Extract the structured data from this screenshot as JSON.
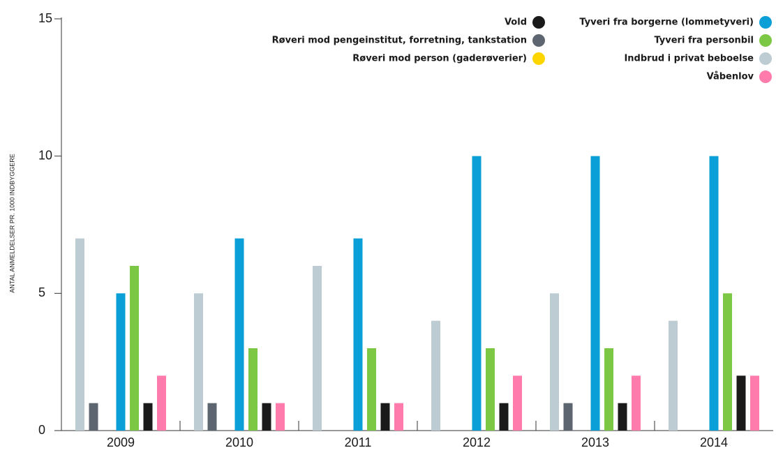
{
  "chart_data": {
    "type": "bar",
    "y_label": "ANTAL ANMELDELSER PR. 1000 INDBYGGERE",
    "categories": [
      "2009",
      "2010",
      "2011",
      "2012",
      "2013",
      "2014"
    ],
    "series": [
      {
        "name": "Indbrud i privat beboelse",
        "color": "#bdccd2",
        "values": [
          7,
          5,
          6,
          4,
          5,
          4
        ]
      },
      {
        "name": "Røveri mod pengeinstitut, forretning, tankstation",
        "color": "#5c6570",
        "values": [
          1,
          1,
          0,
          0,
          1,
          0
        ]
      },
      {
        "name": "Røveri mod person (gaderøverier)",
        "color": "#ffd500",
        "values": [
          0,
          0,
          0,
          0,
          0,
          0
        ]
      },
      {
        "name": "Tyveri fra borgerne (lommetyveri)",
        "color": "#0a9fd6",
        "values": [
          5,
          7,
          7,
          10,
          10,
          10
        ]
      },
      {
        "name": "Tyveri fra personbil",
        "color": "#7cc744",
        "values": [
          6,
          3,
          3,
          3,
          3,
          5
        ]
      },
      {
        "name": "Vold",
        "color": "#1a1a1a",
        "values": [
          1,
          1,
          1,
          1,
          1,
          2
        ]
      },
      {
        "name": "Våbenlov",
        "color": "#ff7bac",
        "values": [
          2,
          1,
          1,
          2,
          2,
          2
        ]
      }
    ],
    "ylim": [
      0,
      15
    ],
    "yticks": [
      0,
      5,
      10,
      15
    ]
  }
}
